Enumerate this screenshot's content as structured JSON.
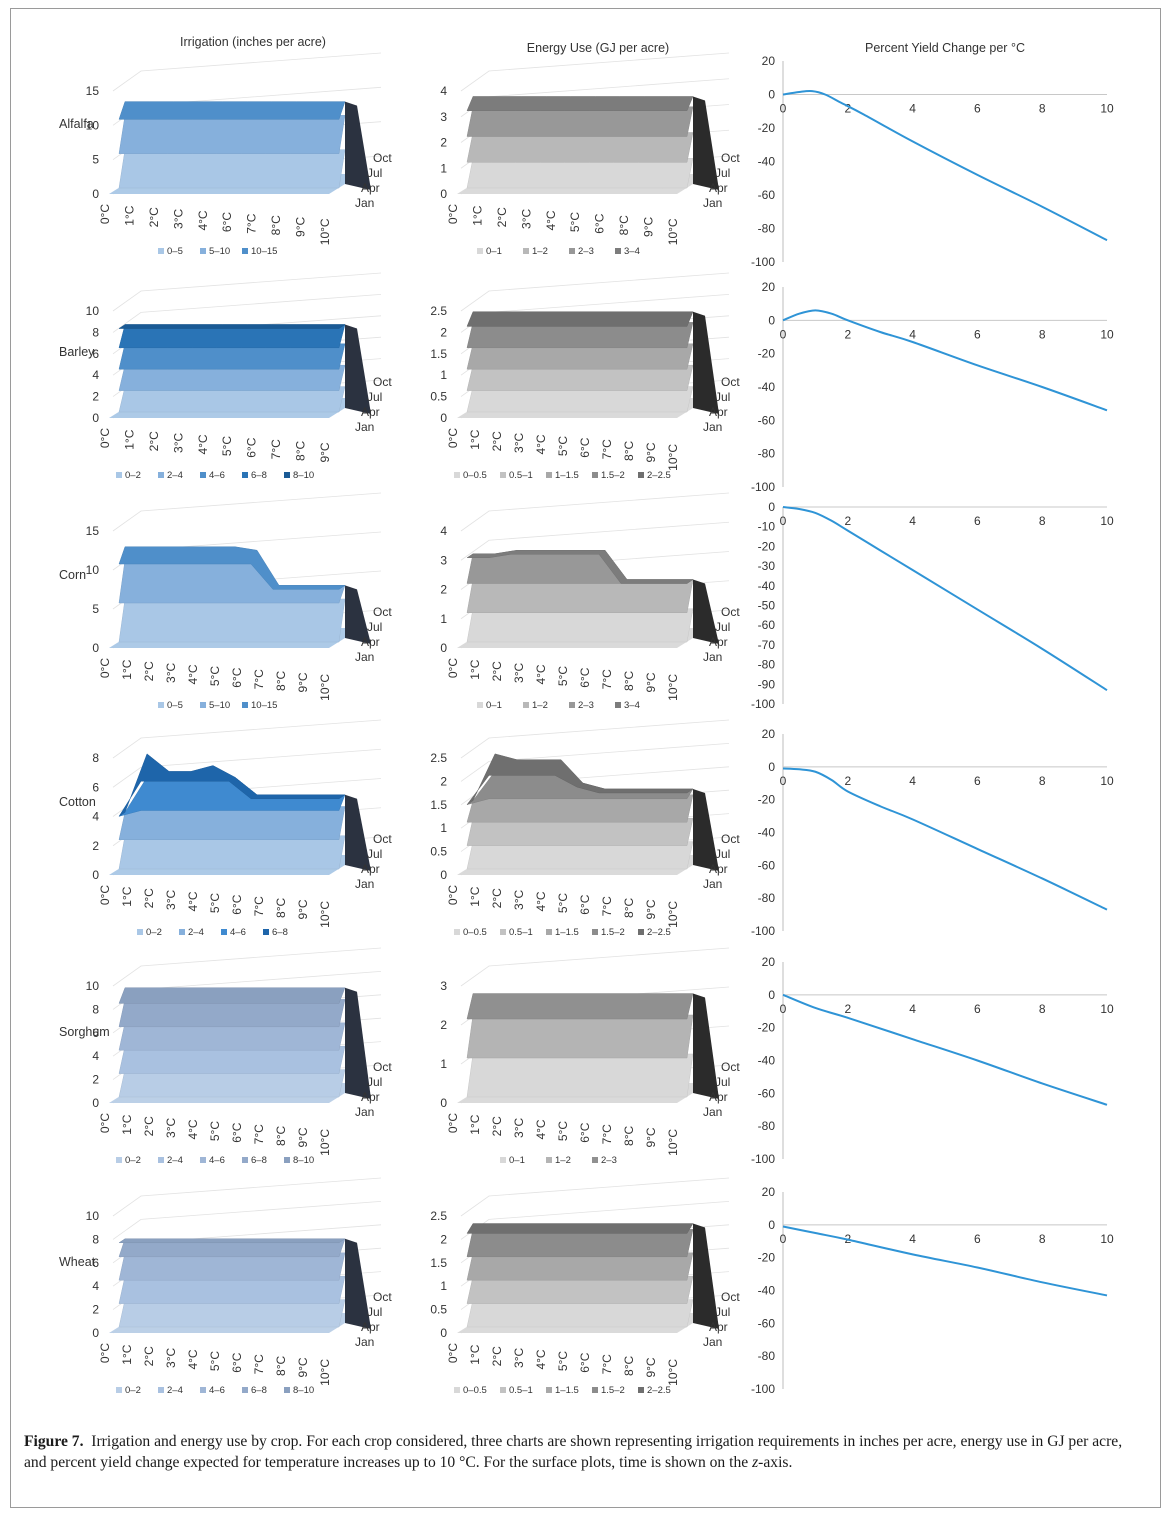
{
  "figure": {
    "label": "Figure 7.",
    "caption_part1": "Irrigation and energy use by crop. For each crop considered, three charts are shown representing irrigation requirements in inches per acre, energy use in GJ per acre, and percent yield change expected for temperature increases up to 10 °C. For the surface plots, time is shown on the ",
    "caption_z": "z",
    "caption_part2": "-axis."
  },
  "column_titles": {
    "irrigation": "Irrigation (inches per acre)",
    "energy": "Energy Use (GJ per acre)",
    "yield": "Percent Yield Change per °C"
  },
  "colors": {
    "yield_line": "#2f94d6",
    "blue_palettes": {
      "alfalfa": [
        "#a9c7e6",
        "#86b0dc",
        "#4f8fca"
      ],
      "barley": [
        "#a9c7e6",
        "#86b0dc",
        "#4f8fca",
        "#2a74b6",
        "#1a5a95"
      ],
      "corn": [
        "#a9c7e6",
        "#86b0dc",
        "#4f8fca"
      ],
      "cotton": [
        "#a9c7e6",
        "#86b0dc",
        "#3f8ad0",
        "#1e65aa"
      ],
      "sorghum": [
        "#b8cde6",
        "#a9c1e0",
        "#9fb6d6",
        "#93a9c9",
        "#8aa0bf"
      ],
      "wheat": [
        "#b8cde6",
        "#a9c1e0",
        "#9fb6d6",
        "#93a9c9",
        "#8aa0bf"
      ]
    },
    "gray_palettes": {
      "alfalfa": [
        "#d8d8d8",
        "#b8b8b8",
        "#989898",
        "#7c7c7c"
      ],
      "barley": [
        "#d8d8d8",
        "#c2c2c2",
        "#a8a8a8",
        "#8c8c8c",
        "#6f6f6f"
      ],
      "corn": [
        "#d8d8d8",
        "#b8b8b8",
        "#989898",
        "#7c7c7c"
      ],
      "cotton": [
        "#d8d8d8",
        "#c2c2c2",
        "#a8a8a8",
        "#8c8c8c",
        "#6f6f6f"
      ],
      "sorghum": [
        "#d8d8d8",
        "#b4b4b4",
        "#909090"
      ],
      "wheat": [
        "#d8d8d8",
        "#c2c2c2",
        "#a8a8a8",
        "#8c8c8c",
        "#6f6f6f"
      ]
    }
  },
  "chart_data": [
    {
      "crop": "Alfalfa",
      "kind": "irrigation",
      "type": "surface",
      "x_ticks": [
        "0°C",
        "1°C",
        "2°C",
        "3°C",
        "4°C",
        "6°C",
        "7°C",
        "8°C",
        "9°C",
        "10°C"
      ],
      "z_ticks": [
        "Oct",
        "Jul",
        "Apr",
        "Jan"
      ],
      "y_ticks": [
        "0",
        "5",
        "10",
        "15"
      ],
      "ylim": [
        0,
        15
      ],
      "legend": [
        "0–5",
        "5–10",
        "10–15"
      ]
    },
    {
      "crop": "Alfalfa",
      "kind": "energy",
      "type": "surface",
      "x_ticks": [
        "0°C",
        "1°C",
        "2°C",
        "3°C",
        "4°C",
        "5°C",
        "6°C",
        "8°C",
        "9°C",
        "10°C"
      ],
      "z_ticks": [
        "Oct",
        "Jul",
        "Apr",
        "Jan"
      ],
      "y_ticks": [
        "0",
        "1",
        "2",
        "3",
        "4"
      ],
      "ylim": [
        0,
        4
      ],
      "legend": [
        "0–1",
        "1–2",
        "2–3",
        "3–4"
      ]
    },
    {
      "crop": "Alfalfa",
      "kind": "yield",
      "type": "line",
      "x_ticks": [
        "0",
        "2",
        "4",
        "6",
        "8",
        "10"
      ],
      "y_ticks": [
        "20",
        "0",
        "-20",
        "-40",
        "-60",
        "-80",
        "-100"
      ],
      "xlim": [
        0,
        10
      ],
      "ylim": [
        -100,
        20
      ],
      "x": [
        0,
        0.5,
        0.9,
        1.3,
        1.8,
        2.5,
        4,
        6,
        8,
        10
      ],
      "y": [
        0,
        1.5,
        2,
        0,
        -5,
        -12,
        -28,
        -48,
        -67,
        -87
      ]
    },
    {
      "crop": "Barley",
      "kind": "irrigation",
      "type": "surface",
      "x_ticks": [
        "0°C",
        "1°C",
        "2°C",
        "3°C",
        "4°C",
        "5°C",
        "6°C",
        "7°C",
        "8°C",
        "9°C"
      ],
      "z_ticks": [
        "Oct",
        "Jul",
        "Apr",
        "Jan"
      ],
      "y_ticks": [
        "0",
        "2",
        "4",
        "6",
        "8",
        "10"
      ],
      "ylim": [
        0,
        10
      ],
      "legend": [
        "0–2",
        "2–4",
        "4–6",
        "6–8",
        "8–10"
      ]
    },
    {
      "crop": "Barley",
      "kind": "energy",
      "type": "surface",
      "x_ticks": [
        "0°C",
        "1°C",
        "2°C",
        "3°C",
        "4°C",
        "5°C",
        "6°C",
        "7°C",
        "8°C",
        "9°C",
        "10°C"
      ],
      "z_ticks": [
        "Oct",
        "Jul",
        "Apr",
        "Jan"
      ],
      "y_ticks": [
        "0",
        "0.5",
        "1",
        "1.5",
        "2",
        "2.5"
      ],
      "ylim": [
        0,
        2.5
      ],
      "legend": [
        "0–0.5",
        "0.5–1",
        "1–1.5",
        "1.5–2",
        "2–2.5"
      ]
    },
    {
      "crop": "Barley",
      "kind": "yield",
      "type": "line",
      "x_ticks": [
        "0",
        "2",
        "4",
        "6",
        "8",
        "10"
      ],
      "y_ticks": [
        "20",
        "0",
        "-20",
        "-40",
        "-60",
        "-80",
        "-100"
      ],
      "xlim": [
        0,
        10
      ],
      "ylim": [
        -100,
        20
      ],
      "x": [
        0,
        0.5,
        1,
        1.5,
        2,
        3,
        4,
        6,
        8,
        10
      ],
      "y": [
        0,
        4,
        6,
        4,
        0,
        -7,
        -13,
        -27,
        -40,
        -54
      ]
    },
    {
      "crop": "Corn",
      "kind": "irrigation",
      "type": "surface",
      "x_ticks": [
        "0°C",
        "1°C",
        "2°C",
        "3°C",
        "4°C",
        "5°C",
        "6°C",
        "7°C",
        "8°C",
        "9°C",
        "10°C"
      ],
      "z_ticks": [
        "Oct",
        "Jul",
        "Apr",
        "Jan"
      ],
      "y_ticks": [
        "0",
        "5",
        "10",
        "15"
      ],
      "ylim": [
        0,
        15
      ],
      "legend": [
        "0–5",
        "5–10",
        "10–15"
      ]
    },
    {
      "crop": "Corn",
      "kind": "energy",
      "type": "surface",
      "x_ticks": [
        "0°C",
        "1°C",
        "2°C",
        "3°C",
        "4°C",
        "5°C",
        "6°C",
        "7°C",
        "8°C",
        "9°C",
        "10°C"
      ],
      "z_ticks": [
        "Oct",
        "Jul",
        "Apr",
        "Jan"
      ],
      "y_ticks": [
        "0",
        "1",
        "2",
        "3",
        "4"
      ],
      "ylim": [
        0,
        4
      ],
      "legend": [
        "0–1",
        "1–2",
        "2–3",
        "3–4"
      ]
    },
    {
      "crop": "Corn",
      "kind": "yield",
      "type": "line",
      "x_ticks": [
        "0",
        "2",
        "4",
        "6",
        "8",
        "10"
      ],
      "y_ticks": [
        "0",
        "-10",
        "-20",
        "-30",
        "-40",
        "-50",
        "-60",
        "-70",
        "-80",
        "-90",
        "-100"
      ],
      "xlim": [
        0,
        10
      ],
      "ylim": [
        -100,
        0
      ],
      "x": [
        0,
        0.5,
        1,
        1.5,
        2,
        3,
        4,
        6,
        8,
        10
      ],
      "y": [
        0,
        -1,
        -3,
        -7,
        -12,
        -22,
        -32,
        -52,
        -72,
        -93
      ]
    },
    {
      "crop": "Cotton",
      "kind": "irrigation",
      "type": "surface",
      "x_ticks": [
        "0°C",
        "1°C",
        "2°C",
        "3°C",
        "4°C",
        "5°C",
        "6°C",
        "7°C",
        "8°C",
        "9°C",
        "10°C"
      ],
      "z_ticks": [
        "Oct",
        "Jul",
        "Apr",
        "Jan"
      ],
      "y_ticks": [
        "0",
        "2",
        "4",
        "6",
        "8"
      ],
      "ylim": [
        0,
        8
      ],
      "legend": [
        "0–2",
        "2–4",
        "4–6",
        "6–8"
      ]
    },
    {
      "crop": "Cotton",
      "kind": "energy",
      "type": "surface",
      "x_ticks": [
        "0°C",
        "1°C",
        "2°C",
        "3°C",
        "4°C",
        "5°C",
        "6°C",
        "7°C",
        "8°C",
        "9°C",
        "10°C"
      ],
      "z_ticks": [
        "Oct",
        "Jul",
        "Apr",
        "Jan"
      ],
      "y_ticks": [
        "0",
        "0.5",
        "1",
        "1.5",
        "2",
        "2.5"
      ],
      "ylim": [
        0,
        2.5
      ],
      "legend": [
        "0–0.5",
        "0.5–1",
        "1–1.5",
        "1.5–2",
        "2–2.5"
      ]
    },
    {
      "crop": "Cotton",
      "kind": "yield",
      "type": "line",
      "x_ticks": [
        "0",
        "2",
        "4",
        "6",
        "8",
        "10"
      ],
      "y_ticks": [
        "20",
        "0",
        "-20",
        "-40",
        "-60",
        "-80",
        "-100"
      ],
      "xlim": [
        0,
        10
      ],
      "ylim": [
        -100,
        20
      ],
      "x": [
        0,
        0.5,
        1,
        1.5,
        2,
        3,
        4,
        6,
        8,
        10
      ],
      "y": [
        -1,
        -1.5,
        -3,
        -8,
        -15,
        -24,
        -32,
        -50,
        -68,
        -87
      ]
    },
    {
      "crop": "Sorghum",
      "kind": "irrigation",
      "type": "surface",
      "x_ticks": [
        "0°C",
        "1°C",
        "2°C",
        "3°C",
        "4°C",
        "5°C",
        "6°C",
        "7°C",
        "8°C",
        "9°C",
        "10°C"
      ],
      "z_ticks": [
        "Oct",
        "Jul",
        "Apr",
        "Jan"
      ],
      "y_ticks": [
        "0",
        "2",
        "4",
        "6",
        "8",
        "10"
      ],
      "ylim": [
        0,
        10
      ],
      "legend": [
        "0–2",
        "2–4",
        "4–6",
        "6–8",
        "8–10"
      ]
    },
    {
      "crop": "Sorghum",
      "kind": "energy",
      "type": "surface",
      "x_ticks": [
        "0°C",
        "1°C",
        "2°C",
        "3°C",
        "4°C",
        "5°C",
        "6°C",
        "7°C",
        "8°C",
        "9°C",
        "10°C"
      ],
      "z_ticks": [
        "Oct",
        "Jul",
        "Apr",
        "Jan"
      ],
      "y_ticks": [
        "0",
        "1",
        "2",
        "3"
      ],
      "ylim": [
        0,
        3
      ],
      "legend": [
        "0–1",
        "1–2",
        "2–3"
      ]
    },
    {
      "crop": "Sorghum",
      "kind": "yield",
      "type": "line",
      "x_ticks": [
        "0",
        "2",
        "4",
        "6",
        "8",
        "10"
      ],
      "y_ticks": [
        "20",
        "0",
        "-20",
        "-40",
        "-60",
        "-80",
        "-100"
      ],
      "xlim": [
        0,
        10
      ],
      "ylim": [
        -100,
        20
      ],
      "x": [
        0,
        1,
        2,
        4,
        6,
        8,
        10
      ],
      "y": [
        0,
        -8,
        -14,
        -27,
        -40,
        -54,
        -67
      ]
    },
    {
      "crop": "Wheat",
      "kind": "irrigation",
      "type": "surface",
      "x_ticks": [
        "0°C",
        "1°C",
        "2°C",
        "3°C",
        "4°C",
        "5°C",
        "6°C",
        "7°C",
        "8°C",
        "9°C",
        "10°C"
      ],
      "z_ticks": [
        "Oct",
        "Jul",
        "Apr",
        "Jan"
      ],
      "y_ticks": [
        "0",
        "2",
        "4",
        "6",
        "8",
        "10"
      ],
      "ylim": [
        0,
        10
      ],
      "legend": [
        "0–2",
        "2–4",
        "4–6",
        "6–8",
        "8–10"
      ]
    },
    {
      "crop": "Wheat",
      "kind": "energy",
      "type": "surface",
      "x_ticks": [
        "0°C",
        "1°C",
        "2°C",
        "3°C",
        "4°C",
        "5°C",
        "6°C",
        "7°C",
        "8°C",
        "9°C",
        "10°C"
      ],
      "z_ticks": [
        "Oct",
        "Jul",
        "Apr",
        "Jan"
      ],
      "y_ticks": [
        "0",
        "0.5",
        "1",
        "1.5",
        "2",
        "2.5"
      ],
      "ylim": [
        0,
        2.5
      ],
      "legend": [
        "0–0.5",
        "0.5–1",
        "1–1.5",
        "1.5–2",
        "2–2.5"
      ]
    },
    {
      "crop": "Wheat",
      "kind": "yield",
      "type": "line",
      "x_ticks": [
        "0",
        "2",
        "4",
        "6",
        "8",
        "10"
      ],
      "y_ticks": [
        "20",
        "0",
        "-20",
        "-40",
        "-60",
        "-80",
        "-100"
      ],
      "xlim": [
        0,
        10
      ],
      "ylim": [
        -100,
        20
      ],
      "x": [
        0,
        1,
        2,
        4,
        6,
        8,
        10
      ],
      "y": [
        -1,
        -5,
        -9,
        -18,
        -26,
        -35,
        -43
      ]
    }
  ]
}
